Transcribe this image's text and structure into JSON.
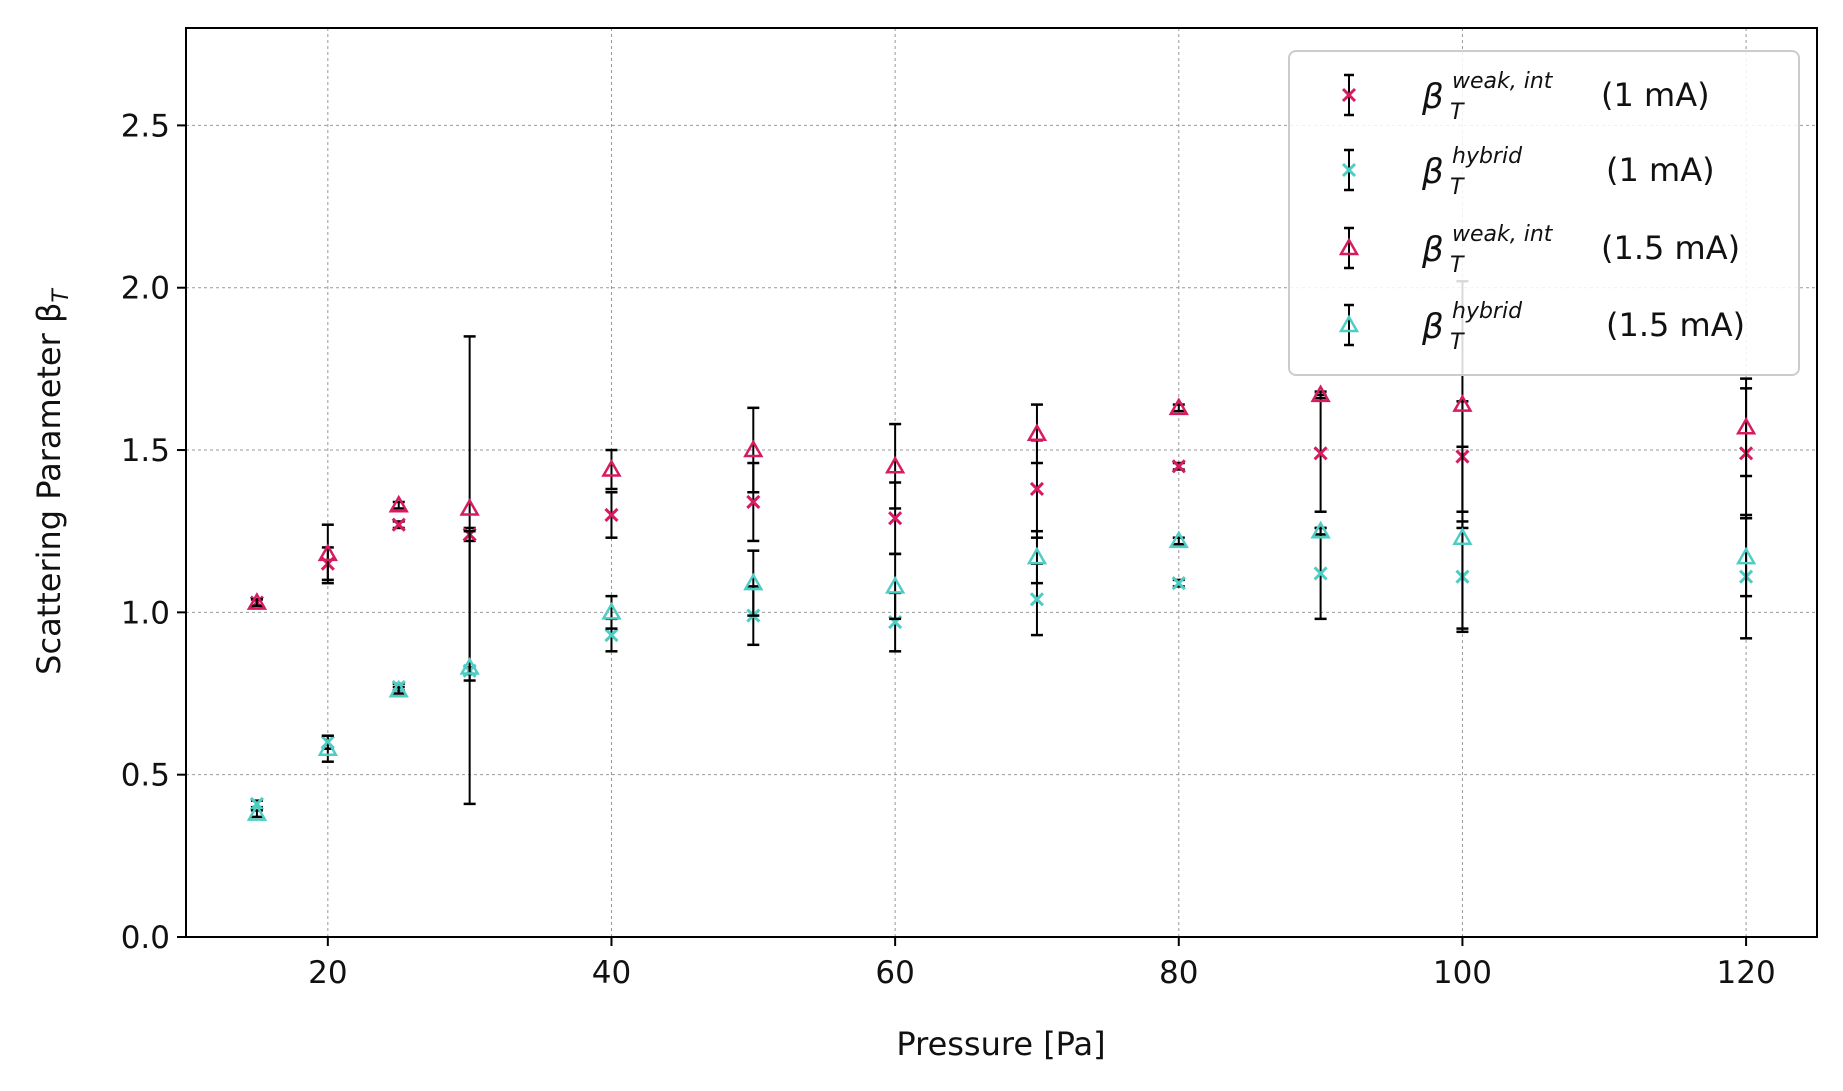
{
  "chart_data": {
    "type": "scatter",
    "title": "",
    "xlabel": "Pressure [Pa]",
    "ylabel": "Scattering Parameter β",
    "ylabel_subscript": "T",
    "xlim": [
      10,
      125
    ],
    "ylim": [
      0,
      2.8
    ],
    "xticks": [
      20,
      40,
      60,
      80,
      100,
      120
    ],
    "yticks": [
      0.0,
      0.5,
      1.0,
      1.5,
      2.0,
      2.5
    ],
    "xtick_labels": [
      "20",
      "40",
      "60",
      "80",
      "100",
      "120"
    ],
    "ytick_labels": [
      "0.0",
      "0.5",
      "1.0",
      "1.5",
      "2.0",
      "2.5"
    ],
    "grid": true,
    "legend_position": "top-right",
    "colors": {
      "crimson": "#d81b60",
      "turquoise": "#4ecdc4",
      "errorbar": "#000000",
      "grid": "#999999"
    },
    "series": [
      {
        "symbol": "β",
        "sup": "weak, int",
        "sub": "T",
        "current": "(1 mA)",
        "marker": "x",
        "color": "#d81b60",
        "points": [
          {
            "x": 15,
            "y": 1.03,
            "err": 0.01
          },
          {
            "x": 20,
            "y": 1.15,
            "err": 0.05
          },
          {
            "x": 25,
            "y": 1.27,
            "err": 0.01
          },
          {
            "x": 30,
            "y": 1.24,
            "err": 0.02
          },
          {
            "x": 40,
            "y": 1.3,
            "err": 0.07
          },
          {
            "x": 50,
            "y": 1.34,
            "err": 0.12
          },
          {
            "x": 60,
            "y": 1.29,
            "err": 0.11
          },
          {
            "x": 70,
            "y": 1.38,
            "err": 0.15
          },
          {
            "x": 80,
            "y": 1.45,
            "err": 0.01
          },
          {
            "x": 90,
            "y": 1.49,
            "err": 0.18
          },
          {
            "x": 100,
            "y": 1.48,
            "err": 0.17
          },
          {
            "x": 120,
            "y": 1.49,
            "err": 0.2
          }
        ]
      },
      {
        "symbol": "β",
        "sup": "hybrid",
        "sub": "T",
        "current": "(1 mA)",
        "marker": "x",
        "color": "#4ecdc4",
        "points": [
          {
            "x": 15,
            "y": 0.41,
            "err": 0.01
          },
          {
            "x": 20,
            "y": 0.6,
            "err": 0.02
          },
          {
            "x": 25,
            "y": 0.77,
            "err": 0.01
          },
          {
            "x": 30,
            "y": 0.82,
            "err": 0.01
          },
          {
            "x": 40,
            "y": 0.93,
            "err": 0.05
          },
          {
            "x": 50,
            "y": 0.99,
            "err": 0.09
          },
          {
            "x": 60,
            "y": 0.97,
            "err": 0.09
          },
          {
            "x": 70,
            "y": 1.04,
            "err": 0.11
          },
          {
            "x": 80,
            "y": 1.09,
            "err": 0.01
          },
          {
            "x": 90,
            "y": 1.12,
            "err": 0.14
          },
          {
            "x": 100,
            "y": 1.11,
            "err": 0.17
          },
          {
            "x": 120,
            "y": 1.11,
            "err": 0.19
          }
        ]
      },
      {
        "symbol": "β",
        "sup": "weak, int",
        "sub": "T",
        "current": "(1.5 mA)",
        "marker": "triangle",
        "color": "#d81b60",
        "points": [
          {
            "x": 15,
            "y": 1.03,
            "err": 0.01
          },
          {
            "x": 20,
            "y": 1.18,
            "err": 0.09
          },
          {
            "x": 25,
            "y": 1.33,
            "err": 0.01
          },
          {
            "x": 30,
            "y": 1.32,
            "err": 0.53
          },
          {
            "x": 40,
            "y": 1.44,
            "err": 0.06
          },
          {
            "x": 50,
            "y": 1.5,
            "err": 0.13
          },
          {
            "x": 60,
            "y": 1.45,
            "err": 0.13
          },
          {
            "x": 70,
            "y": 1.55,
            "err": 0.09
          },
          {
            "x": 80,
            "y": 1.63,
            "err": 0.01
          },
          {
            "x": 90,
            "y": 1.67,
            "err": 0.01
          },
          {
            "x": 100,
            "y": 1.64,
            "err": 0.38
          },
          {
            "x": 120,
            "y": 1.57,
            "err": 0.15
          }
        ]
      },
      {
        "symbol": "β",
        "sup": "hybrid",
        "sub": "T",
        "current": "(1.5 mA)",
        "marker": "triangle",
        "color": "#4ecdc4",
        "points": [
          {
            "x": 15,
            "y": 0.38,
            "err": 0.01
          },
          {
            "x": 20,
            "y": 0.58,
            "err": 0.04
          },
          {
            "x": 25,
            "y": 0.76,
            "err": 0.01
          },
          {
            "x": 30,
            "y": 0.83,
            "err": 0.42
          },
          {
            "x": 40,
            "y": 1.0,
            "err": 0.05
          },
          {
            "x": 50,
            "y": 1.09,
            "err": 0.1
          },
          {
            "x": 60,
            "y": 1.08,
            "err": 0.1
          },
          {
            "x": 70,
            "y": 1.17,
            "err": 0.08
          },
          {
            "x": 80,
            "y": 1.22,
            "err": 0.01
          },
          {
            "x": 90,
            "y": 1.25,
            "err": 0.01
          },
          {
            "x": 100,
            "y": 1.23,
            "err": 0.28
          },
          {
            "x": 120,
            "y": 1.17,
            "err": 0.12
          }
        ]
      }
    ]
  }
}
